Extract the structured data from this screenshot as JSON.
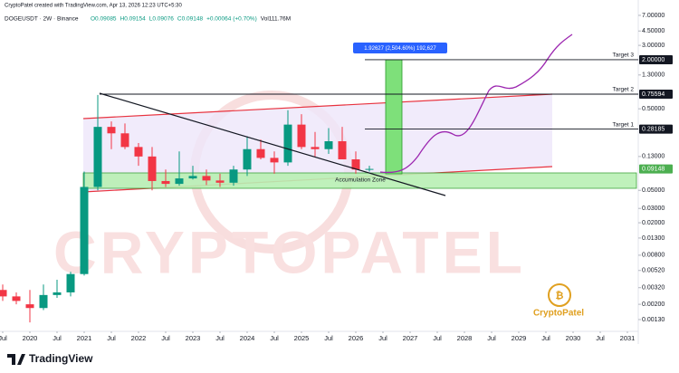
{
  "header": "CryptoPatel created with TradingView.com, Apr 13, 2026 12:23 UTC+5:30",
  "chart_data": {
    "type": "candlestick",
    "symbol": "DOGEUSDT · 2W · Binance",
    "ohlc_legend": [
      "O0.09085",
      "H0.09154",
      "L0.09076",
      "C0.09148",
      "+0.00064 (+0.70%)",
      "Vol111.76M"
    ],
    "x": [
      2019.5,
      2019.75,
      2020.0,
      2020.25,
      2020.5,
      2020.75,
      2021.0,
      2021.25,
      2021.5,
      2021.75,
      2022.0,
      2022.25,
      2022.5,
      2022.75,
      2023.0,
      2023.25,
      2023.5,
      2023.75,
      2024.0,
      2024.25,
      2024.5,
      2024.75,
      2025.0,
      2025.25,
      2025.5,
      2025.75,
      2026.0,
      2026.25
    ],
    "open": [
      0.003,
      0.0025,
      0.002,
      0.0018,
      0.0026,
      0.0028,
      0.0047,
      0.055,
      0.3,
      0.25,
      0.17,
      0.13,
      0.065,
      0.06,
      0.07,
      0.075,
      0.066,
      0.062,
      0.09,
      0.16,
      0.125,
      0.11,
      0.32,
      0.17,
      0.16,
      0.2,
      0.12,
      0.09
    ],
    "high": [
      0.0035,
      0.0028,
      0.003,
      0.0035,
      0.004,
      0.005,
      0.085,
      0.74,
      0.35,
      0.33,
      0.19,
      0.17,
      0.09,
      0.15,
      0.1,
      0.09,
      0.08,
      0.1,
      0.23,
      0.21,
      0.15,
      0.48,
      0.43,
      0.26,
      0.29,
      0.3,
      0.15,
      0.1
    ],
    "low": [
      0.0022,
      0.002,
      0.0012,
      0.0017,
      0.0024,
      0.0025,
      0.0045,
      0.05,
      0.16,
      0.16,
      0.1,
      0.05,
      0.055,
      0.057,
      0.068,
      0.058,
      0.055,
      0.057,
      0.075,
      0.12,
      0.08,
      0.1,
      0.16,
      0.13,
      0.14,
      0.15,
      0.08,
      0.085
    ],
    "close": [
      0.0025,
      0.0022,
      0.0018,
      0.0026,
      0.0028,
      0.0047,
      0.055,
      0.3,
      0.25,
      0.17,
      0.13,
      0.065,
      0.06,
      0.07,
      0.075,
      0.066,
      0.062,
      0.09,
      0.16,
      0.125,
      0.11,
      0.32,
      0.17,
      0.16,
      0.2,
      0.12,
      0.09,
      0.0915
    ],
    "up_color": "#089981",
    "down_color": "#f23645",
    "log_scale": true,
    "xlim": [
      2019.45,
      2031.2
    ],
    "xticks": [
      {
        "value": 2019.5,
        "label": "Jul"
      },
      2020,
      {
        "value": 2020.5,
        "label": "Jul"
      },
      2021,
      {
        "value": 2021.5,
        "label": "Jul"
      },
      2022,
      {
        "value": 2022.5,
        "label": "Jul"
      },
      2023,
      {
        "value": 2023.5,
        "label": "Jul"
      },
      2024,
      {
        "value": 2024.5,
        "label": "Jul"
      },
      2025,
      {
        "value": 2025.5,
        "label": "Jul"
      },
      2026,
      {
        "value": 2026.5,
        "label": "Jul"
      },
      2027,
      {
        "value": 2027.5,
        "label": "Jul"
      },
      2028,
      {
        "value": 2028.5,
        "label": "Jul"
      },
      2029,
      {
        "value": 2029.5,
        "label": "Jul"
      },
      2030,
      {
        "value": 2030.5,
        "label": "Jul"
      },
      2031
    ],
    "ylim": [
      0.00074,
      10.8
    ],
    "yticks": [
      {
        "value": 7,
        "label": "7.00000"
      },
      {
        "value": 4.5,
        "label": "4.50000"
      },
      {
        "value": 3,
        "label": "3.00000"
      },
      {
        "value": 1.3,
        "label": "1.30000"
      },
      {
        "value": 0.5,
        "label": "0.50000"
      },
      {
        "value": 0.13,
        "label": "0.13000"
      },
      {
        "value": 0.05,
        "label": "0.05000"
      },
      {
        "value": 0.03,
        "label": "0.03000"
      },
      {
        "value": 0.02,
        "label": "0.02000"
      },
      {
        "value": 0.013,
        "label": "0.01300"
      },
      {
        "value": 0.008,
        "label": "0.00800"
      },
      {
        "value": 0.0052,
        "label": "0.00520"
      },
      {
        "value": 0.0032,
        "label": "0.00320"
      },
      {
        "value": 0.002,
        "label": "0.00200"
      },
      {
        "value": 0.0013,
        "label": "0.00130"
      }
    ],
    "targets": [
      {
        "name": "Target 1",
        "value": 0.28185,
        "label": "0.28185"
      },
      {
        "name": "Target 2",
        "value": 0.75594,
        "label": "0.75594"
      },
      {
        "name": "Target 3",
        "value": 2,
        "label": "2.00000"
      }
    ],
    "current_price": {
      "value": 0.09148,
      "label": "0.09148"
    },
    "zone_label": "Accumulation Zone",
    "measure_label": "1.92627 (2,504.60%) 192,627",
    "watermark": "CRYPTOPATEL",
    "logo": "CryptoPatel"
  },
  "footer": "TradingView"
}
